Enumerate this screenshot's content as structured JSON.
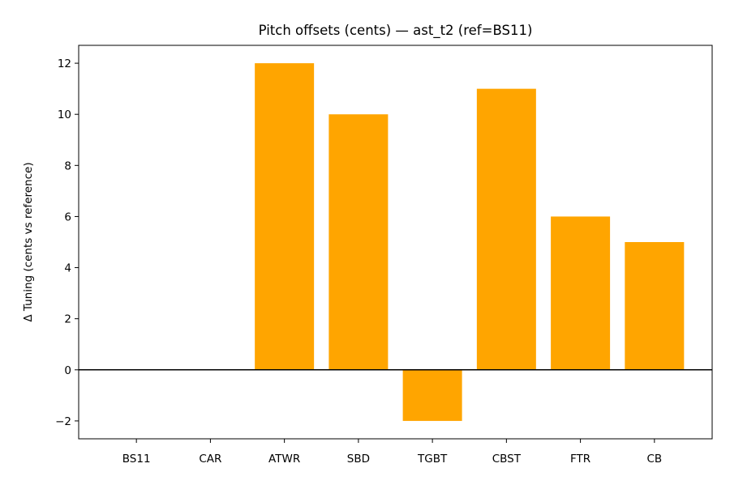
{
  "chart_data": {
    "type": "bar",
    "title": "Pitch offsets (cents) — ast_t2 (ref=BS11)",
    "xlabel": "",
    "ylabel": "Δ Tuning (cents vs reference)",
    "categories": [
      "BS11",
      "CAR",
      "ATWR",
      "SBD",
      "TGBT",
      "CBST",
      "FTR",
      "CB"
    ],
    "values": [
      0,
      0,
      12,
      10,
      -2,
      11,
      6,
      5
    ],
    "ylim": [
      -2.7,
      12.7
    ],
    "yticks": [
      -2,
      0,
      2,
      4,
      6,
      8,
      10,
      12
    ],
    "ytick_labels": [
      "−2",
      "0",
      "2",
      "4",
      "6",
      "8",
      "10",
      "12"
    ],
    "bar_color": "#ffa500",
    "zero_line": true,
    "grid": false
  }
}
